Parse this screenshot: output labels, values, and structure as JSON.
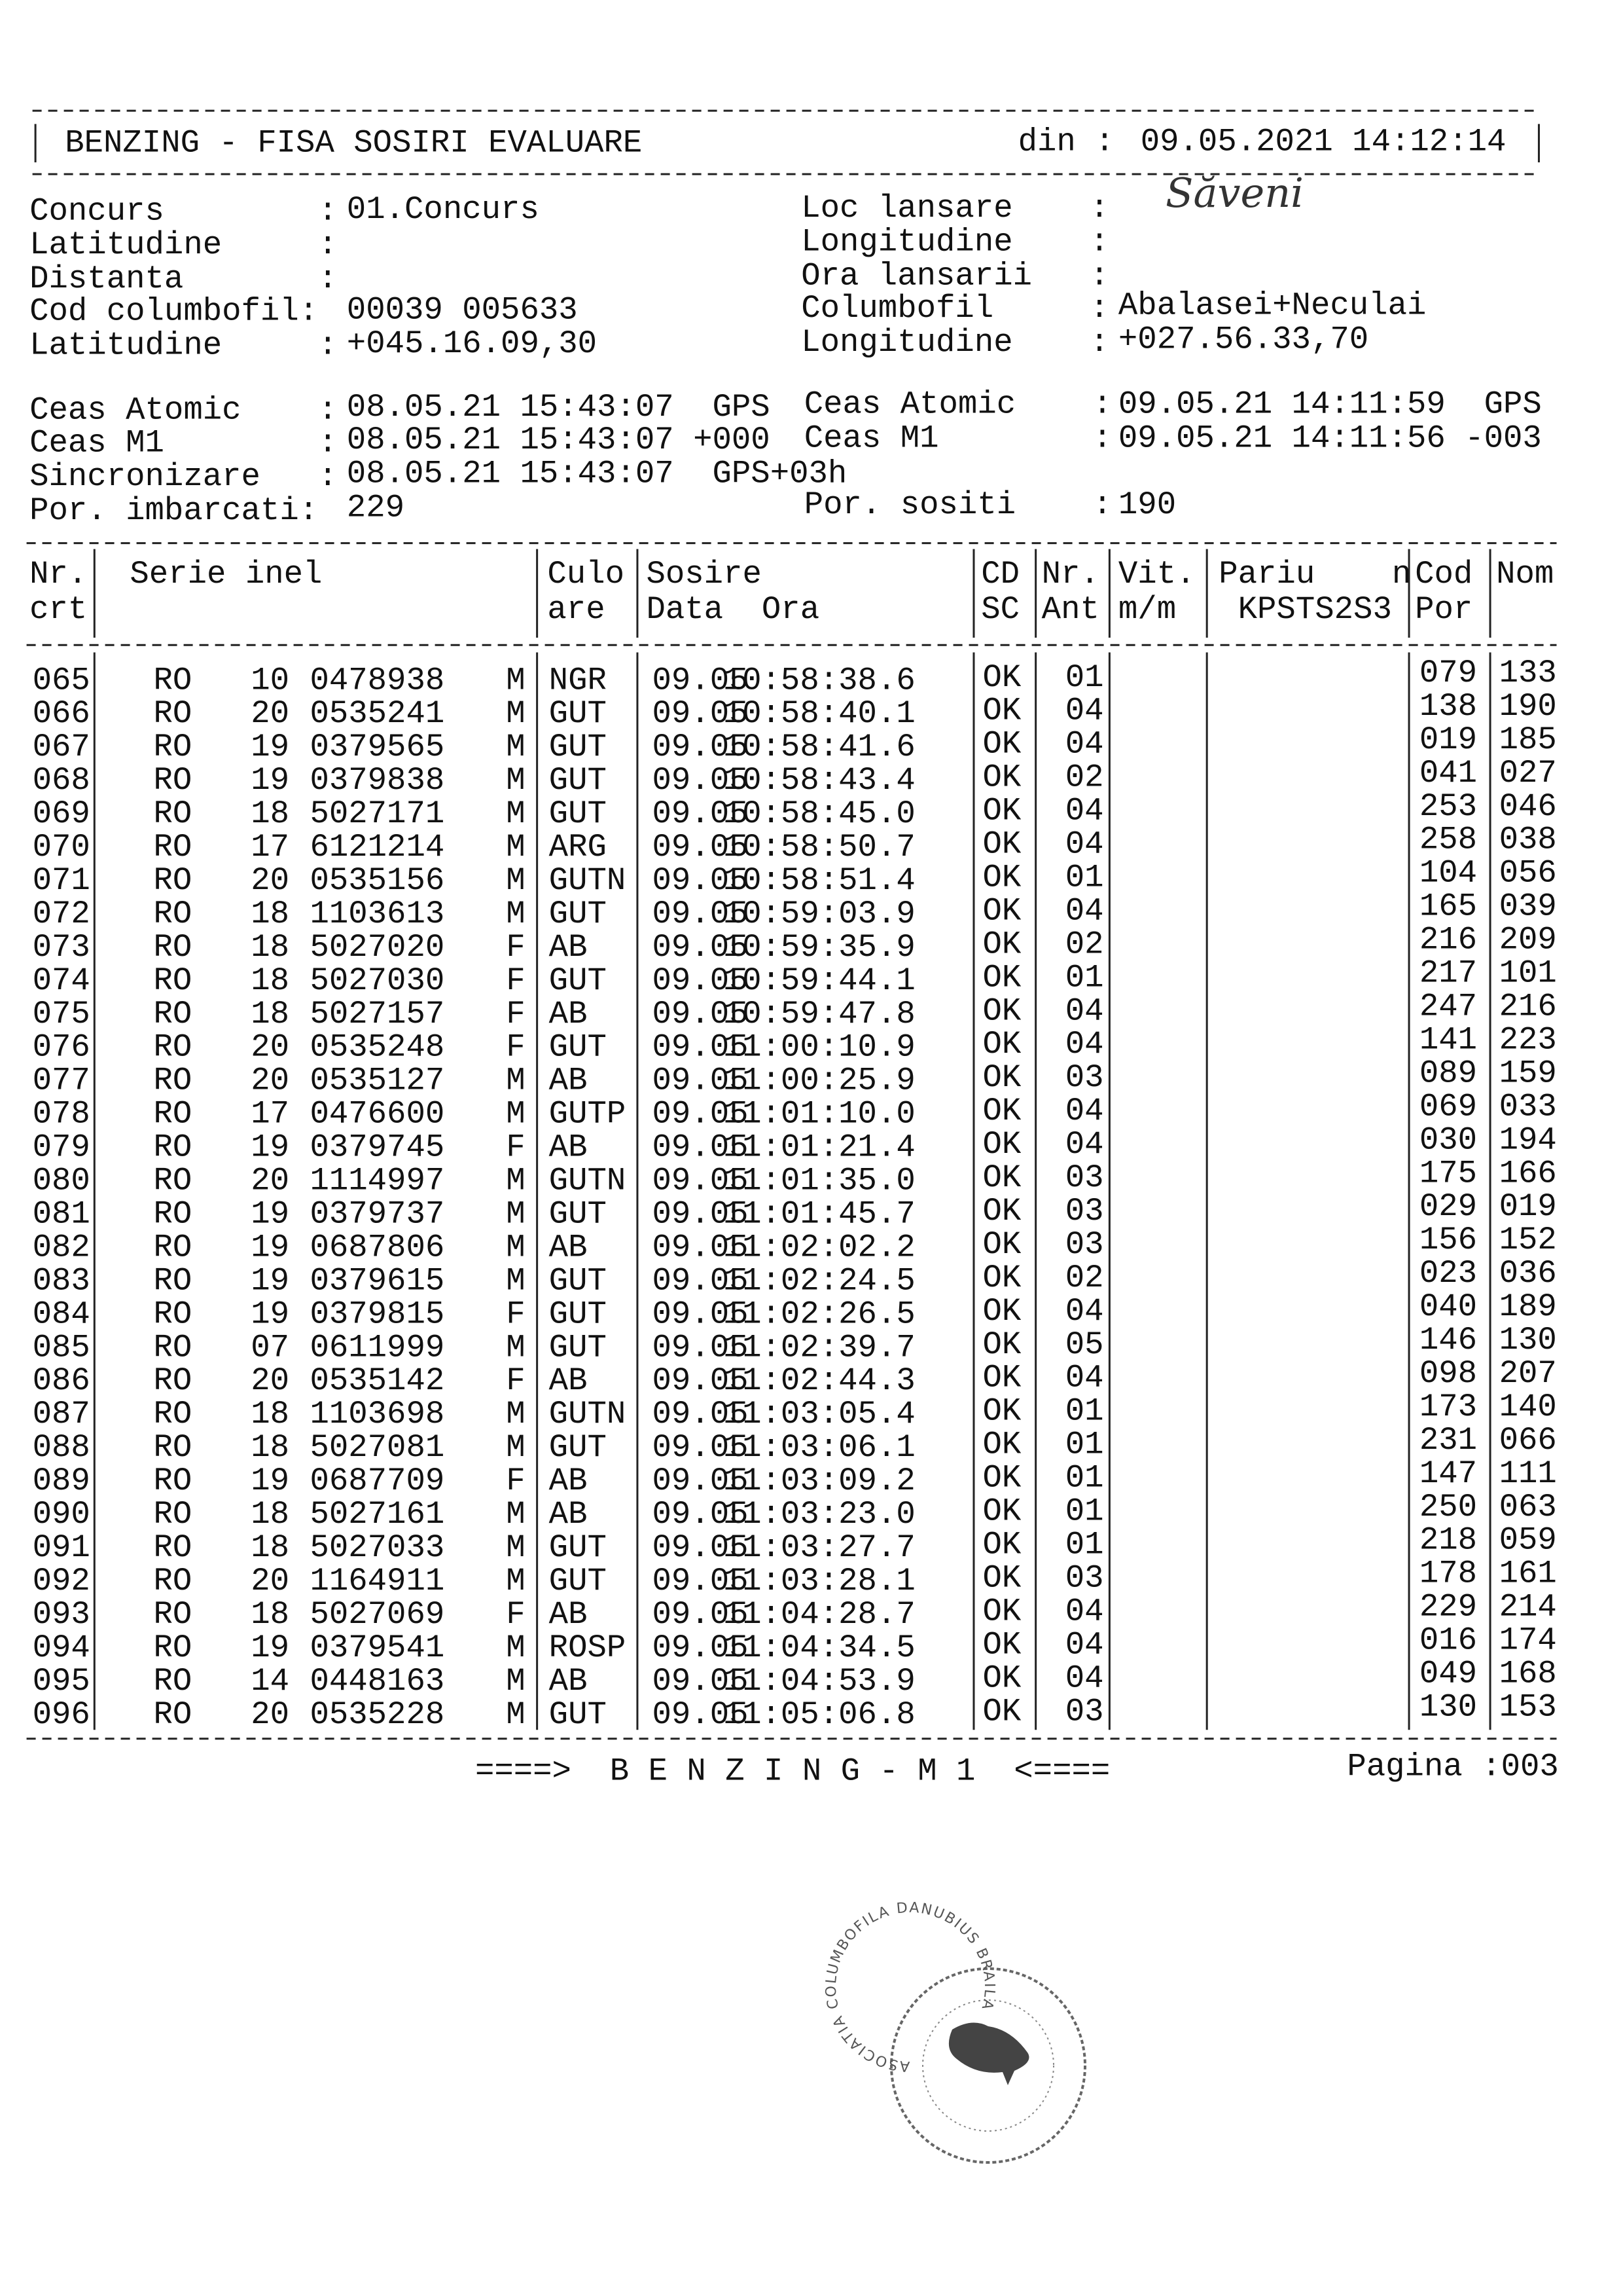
{
  "header": {
    "title": "BENZING - FISA SOSIRI EVALUARE",
    "date_label": "din :",
    "date_value": "09.05.2021 14:12:14"
  },
  "fields_left": [
    {
      "label": "Concurs        :",
      "value": "01.Concurs"
    },
    {
      "label": "Latitudine     :",
      "value": ""
    },
    {
      "label": "Distanta       :",
      "value": ""
    },
    {
      "label": "Cod columbofil:",
      "value": "00039 005633"
    },
    {
      "label": "Latitudine     :",
      "value": "+045.16.09,30"
    }
  ],
  "fields_right": [
    {
      "label": "Loc lansare    :",
      "value": "Săveni"
    },
    {
      "label": "Longitudine    :",
      "value": ""
    },
    {
      "label": "Ora lansarii   :",
      "value": ""
    },
    {
      "label": "Columbofil     :",
      "value": "Abalasei+Neculai"
    },
    {
      "label": "Longitudine    :",
      "value": "+027.56.33,70"
    }
  ],
  "clocks_left": [
    {
      "label": "Ceas Atomic    :",
      "value": "08.05.21 15:43:07  GPS"
    },
    {
      "label": "Ceas M1        :",
      "value": "08.05.21 15:43:07 +000"
    },
    {
      "label": "Sincronizare   :",
      "value": "08.05.21 15:43:07  GPS+03h"
    },
    {
      "label": "Por. imbarcati:",
      "value": "229"
    }
  ],
  "clocks_right": [
    {
      "label": "Ceas Atomic    :",
      "value": "09.05.21 14:11:59  GPS"
    },
    {
      "label": "Ceas M1        :",
      "value": "09.05.21 14:11:56 -003"
    },
    {
      "label": "Por. sositi    :",
      "value": "190"
    }
  ],
  "table": {
    "headers": [
      [
        "Nr.",
        "crt"
      ],
      [
        "Serie inel",
        ""
      ],
      [
        "Culo",
        "are"
      ],
      [
        "Sosire",
        "Data  Ora"
      ],
      [
        "CD",
        "SC"
      ],
      [
        "Nr.",
        "Ant"
      ],
      [
        "Vit.",
        "m/m"
      ],
      [
        "Pariu    n",
        " KPSTS2S3"
      ],
      [
        "Cod",
        "Por"
      ],
      [
        "Nom",
        ""
      ]
    ],
    "rows": [
      [
        "065",
        "RO",
        "10",
        "0478938",
        "M",
        "NGR",
        "09.05",
        "10:58:38.6",
        "OK",
        "01",
        "079",
        "133"
      ],
      [
        "066",
        "RO",
        "20",
        "0535241",
        "M",
        "GUT",
        "09.05",
        "10:58:40.1",
        "OK",
        "04",
        "138",
        "190"
      ],
      [
        "067",
        "RO",
        "19",
        "0379565",
        "M",
        "GUT",
        "09.05",
        "10:58:41.6",
        "OK",
        "04",
        "019",
        "185"
      ],
      [
        "068",
        "RO",
        "19",
        "0379838",
        "M",
        "GUT",
        "09.05",
        "10:58:43.4",
        "OK",
        "02",
        "041",
        "027"
      ],
      [
        "069",
        "RO",
        "18",
        "5027171",
        "M",
        "GUT",
        "09.05",
        "10:58:45.0",
        "OK",
        "04",
        "253",
        "046"
      ],
      [
        "070",
        "RO",
        "17",
        "6121214",
        "M",
        "ARG",
        "09.05",
        "10:58:50.7",
        "OK",
        "04",
        "258",
        "038"
      ],
      [
        "071",
        "RO",
        "20",
        "0535156",
        "M",
        "GUTN",
        "09.05",
        "10:58:51.4",
        "OK",
        "01",
        "104",
        "056"
      ],
      [
        "072",
        "RO",
        "18",
        "1103613",
        "M",
        "GUT",
        "09.05",
        "10:59:03.9",
        "OK",
        "04",
        "165",
        "039"
      ],
      [
        "073",
        "RO",
        "18",
        "5027020",
        "F",
        "AB",
        "09.05",
        "10:59:35.9",
        "OK",
        "02",
        "216",
        "209"
      ],
      [
        "074",
        "RO",
        "18",
        "5027030",
        "F",
        "GUT",
        "09.05",
        "10:59:44.1",
        "OK",
        "01",
        "217",
        "101"
      ],
      [
        "075",
        "RO",
        "18",
        "5027157",
        "F",
        "AB",
        "09.05",
        "10:59:47.8",
        "OK",
        "04",
        "247",
        "216"
      ],
      [
        "076",
        "RO",
        "20",
        "0535248",
        "F",
        "GUT",
        "09.05",
        "11:00:10.9",
        "OK",
        "04",
        "141",
        "223"
      ],
      [
        "077",
        "RO",
        "20",
        "0535127",
        "M",
        "AB",
        "09.05",
        "11:00:25.9",
        "OK",
        "03",
        "089",
        "159"
      ],
      [
        "078",
        "RO",
        "17",
        "0476600",
        "M",
        "GUTP",
        "09.05",
        "11:01:10.0",
        "OK",
        "04",
        "069",
        "033"
      ],
      [
        "079",
        "RO",
        "19",
        "0379745",
        "F",
        "AB",
        "09.05",
        "11:01:21.4",
        "OK",
        "04",
        "030",
        "194"
      ],
      [
        "080",
        "RO",
        "20",
        "1114997",
        "M",
        "GUTN",
        "09.05",
        "11:01:35.0",
        "OK",
        "03",
        "175",
        "166"
      ],
      [
        "081",
        "RO",
        "19",
        "0379737",
        "M",
        "GUT",
        "09.05",
        "11:01:45.7",
        "OK",
        "03",
        "029",
        "019"
      ],
      [
        "082",
        "RO",
        "19",
        "0687806",
        "M",
        "AB",
        "09.05",
        "11:02:02.2",
        "OK",
        "03",
        "156",
        "152"
      ],
      [
        "083",
        "RO",
        "19",
        "0379615",
        "M",
        "GUT",
        "09.05",
        "11:02:24.5",
        "OK",
        "02",
        "023",
        "036"
      ],
      [
        "084",
        "RO",
        "19",
        "0379815",
        "F",
        "GUT",
        "09.05",
        "11:02:26.5",
        "OK",
        "04",
        "040",
        "189"
      ],
      [
        "085",
        "RO",
        "07",
        "0611999",
        "M",
        "GUT",
        "09.05",
        "11:02:39.7",
        "OK",
        "05",
        "146",
        "130"
      ],
      [
        "086",
        "RO",
        "20",
        "0535142",
        "F",
        "AB",
        "09.05",
        "11:02:44.3",
        "OK",
        "04",
        "098",
        "207"
      ],
      [
        "087",
        "RO",
        "18",
        "1103698",
        "M",
        "GUTN",
        "09.05",
        "11:03:05.4",
        "OK",
        "01",
        "173",
        "140"
      ],
      [
        "088",
        "RO",
        "18",
        "5027081",
        "M",
        "GUT",
        "09.05",
        "11:03:06.1",
        "OK",
        "01",
        "231",
        "066"
      ],
      [
        "089",
        "RO",
        "19",
        "0687709",
        "F",
        "AB",
        "09.05",
        "11:03:09.2",
        "OK",
        "01",
        "147",
        "111"
      ],
      [
        "090",
        "RO",
        "18",
        "5027161",
        "M",
        "AB",
        "09.05",
        "11:03:23.0",
        "OK",
        "01",
        "250",
        "063"
      ],
      [
        "091",
        "RO",
        "18",
        "5027033",
        "M",
        "GUT",
        "09.05",
        "11:03:27.7",
        "OK",
        "01",
        "218",
        "059"
      ],
      [
        "092",
        "RO",
        "20",
        "1164911",
        "M",
        "GUT",
        "09.05",
        "11:03:28.1",
        "OK",
        "03",
        "178",
        "161"
      ],
      [
        "093",
        "RO",
        "18",
        "5027069",
        "F",
        "AB",
        "09.05",
        "11:04:28.7",
        "OK",
        "04",
        "229",
        "214"
      ],
      [
        "094",
        "RO",
        "19",
        "0379541",
        "M",
        "ROSP",
        "09.05",
        "11:04:34.5",
        "OK",
        "04",
        "016",
        "174"
      ],
      [
        "095",
        "RO",
        "14",
        "0448163",
        "M",
        "AB",
        "09.05",
        "11:04:53.9",
        "OK",
        "04",
        "049",
        "168"
      ],
      [
        "096",
        "RO",
        "20",
        "0535228",
        "M",
        "GUT",
        "09.05",
        "11:05:06.8",
        "OK",
        "03",
        "130",
        "153"
      ]
    ]
  },
  "footer": {
    "banner": "====>  B E N Z I N G - M 1  <====",
    "page": "Pagina :003"
  },
  "stamp": {
    "text": "ASOCIATIA COLUMBOFILA DANUBIUS BRAILA"
  }
}
